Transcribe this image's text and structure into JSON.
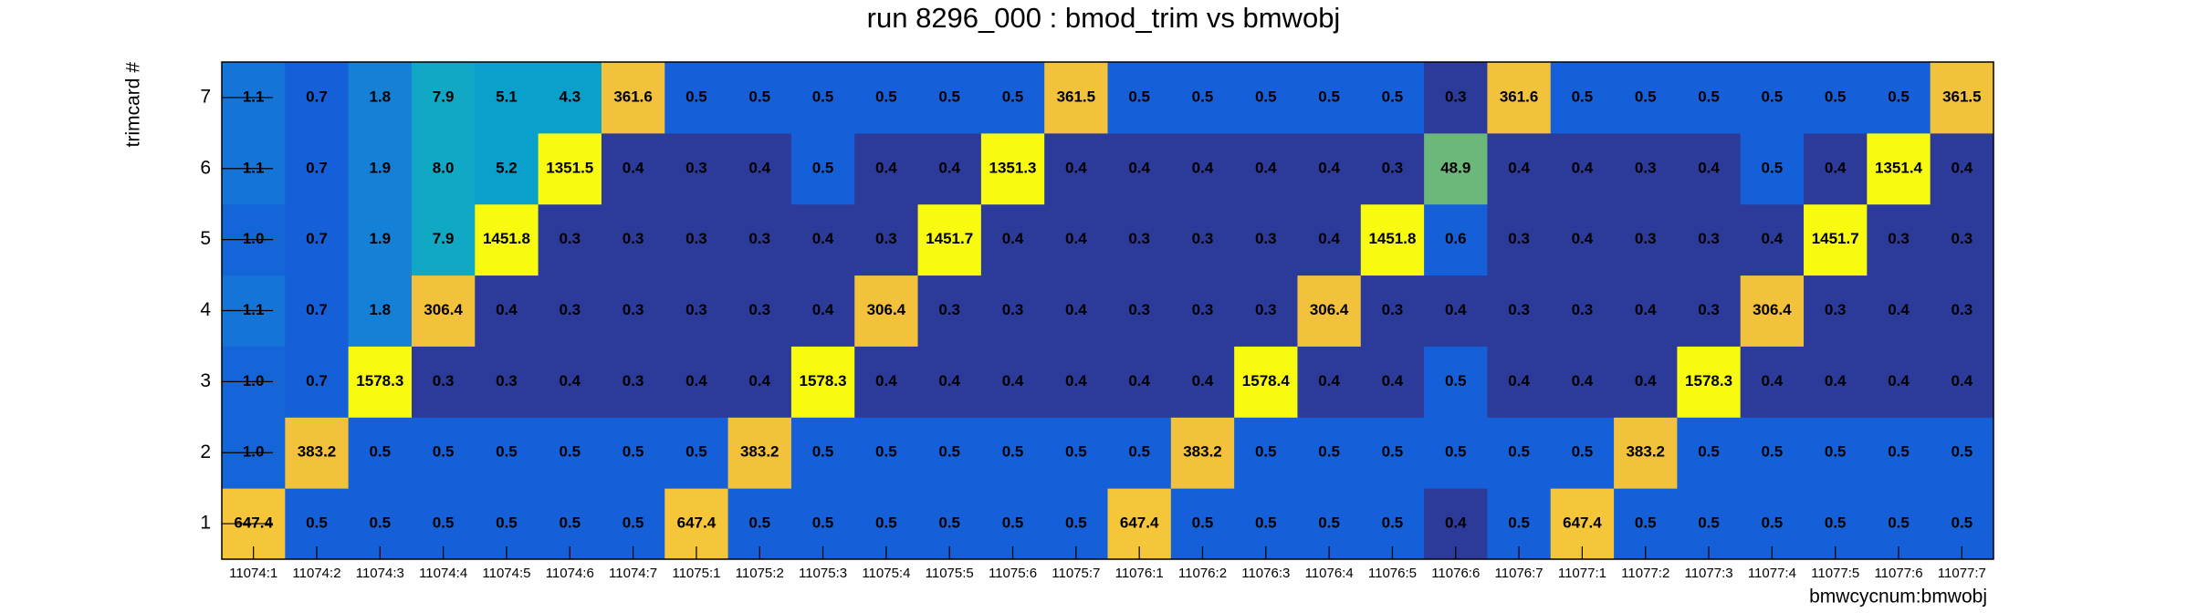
{
  "chart_data": {
    "type": "heatmap",
    "title": "run 8296_000 : bmod_trim vs bmwobj",
    "x_label": "bmwcycnum:bmwobj",
    "y_label": "trimcard #",
    "x_categories": [
      "11074:1",
      "11074:2",
      "11074:3",
      "11074:4",
      "11074:5",
      "11074:6",
      "11074:7",
      "11075:1",
      "11075:2",
      "11075:3",
      "11075:4",
      "11075:5",
      "11075:6",
      "11075:7",
      "11076:1",
      "11076:2",
      "11076:3",
      "11076:4",
      "11076:5",
      "11076:6",
      "11076:7",
      "11077:1",
      "11077:2",
      "11077:3",
      "11077:4",
      "11077:5",
      "11077:6",
      "11077:7"
    ],
    "y_categories": [
      1,
      2,
      3,
      4,
      5,
      6,
      7
    ],
    "values": [
      [
        647.4,
        0.5,
        0.5,
        0.5,
        0.5,
        0.5,
        0.5,
        647.4,
        0.5,
        0.5,
        0.5,
        0.5,
        0.5,
        0.5,
        647.4,
        0.5,
        0.5,
        0.5,
        0.5,
        0.4,
        0.5,
        647.4,
        0.5,
        0.5,
        0.5,
        0.5,
        0.5,
        0.5
      ],
      [
        1.0,
        383.2,
        0.5,
        0.5,
        0.5,
        0.5,
        0.5,
        0.5,
        383.2,
        0.5,
        0.5,
        0.5,
        0.5,
        0.5,
        0.5,
        383.2,
        0.5,
        0.5,
        0.5,
        0.5,
        0.5,
        0.5,
        383.2,
        0.5,
        0.5,
        0.5,
        0.5,
        0.5
      ],
      [
        1.0,
        0.7,
        1578.3,
        0.3,
        0.3,
        0.4,
        0.3,
        0.4,
        0.4,
        1578.3,
        0.4,
        0.4,
        0.4,
        0.4,
        0.4,
        0.4,
        1578.4,
        0.4,
        0.4,
        0.5,
        0.4,
        0.4,
        0.4,
        1578.3,
        0.4,
        0.4,
        0.4,
        0.4
      ],
      [
        1.1,
        0.7,
        1.8,
        306.4,
        0.4,
        0.3,
        0.3,
        0.3,
        0.3,
        0.4,
        306.4,
        0.3,
        0.3,
        0.4,
        0.3,
        0.3,
        0.3,
        306.4,
        0.3,
        0.4,
        0.3,
        0.3,
        0.4,
        0.3,
        306.4,
        0.3,
        0.4,
        0.3
      ],
      [
        1.0,
        0.7,
        1.9,
        7.9,
        1451.8,
        0.3,
        0.3,
        0.3,
        0.3,
        0.4,
        0.3,
        1451.7,
        0.4,
        0.4,
        0.3,
        0.3,
        0.3,
        0.4,
        1451.8,
        0.6,
        0.3,
        0.4,
        0.3,
        0.3,
        0.4,
        1451.7,
        0.3,
        0.3
      ],
      [
        1.1,
        0.7,
        1.9,
        8.0,
        5.2,
        1351.5,
        0.4,
        0.3,
        0.4,
        0.5,
        0.4,
        0.4,
        1351.3,
        0.4,
        0.4,
        0.4,
        0.4,
        0.4,
        0.3,
        48.9,
        0.4,
        0.4,
        0.3,
        0.4,
        0.5,
        0.4,
        1351.4,
        0.4
      ],
      [
        1.1,
        0.7,
        1.8,
        7.9,
        5.1,
        4.3,
        361.6,
        0.5,
        0.5,
        0.5,
        0.5,
        0.5,
        0.5,
        361.5,
        0.5,
        0.5,
        0.5,
        0.5,
        0.5,
        0.3,
        361.6,
        0.5,
        0.5,
        0.5,
        0.5,
        0.5,
        0.5,
        361.5
      ]
    ],
    "value_labels": [
      [
        "647.4",
        "0.5",
        "0.5",
        "0.5",
        "0.5",
        "0.5",
        "0.5",
        "647.4",
        "0.5",
        "0.5",
        "0.5",
        "0.5",
        "0.5",
        "0.5",
        "647.4",
        "0.5",
        "0.5",
        "0.5",
        "0.5",
        "0.4",
        "0.5",
        "647.4",
        "0.5",
        "0.5",
        "0.5",
        "0.5",
        "0.5",
        "0.5"
      ],
      [
        "1.0",
        "383.2",
        "0.5",
        "0.5",
        "0.5",
        "0.5",
        "0.5",
        "0.5",
        "383.2",
        "0.5",
        "0.5",
        "0.5",
        "0.5",
        "0.5",
        "0.5",
        "383.2",
        "0.5",
        "0.5",
        "0.5",
        "0.5",
        "0.5",
        "0.5",
        "383.2",
        "0.5",
        "0.5",
        "0.5",
        "0.5",
        "0.5"
      ],
      [
        "1.0",
        "0.7",
        "1578.3",
        "0.3",
        "0.3",
        "0.4",
        "0.3",
        "0.4",
        "0.4",
        "1578.3",
        "0.4",
        "0.4",
        "0.4",
        "0.4",
        "0.4",
        "0.4",
        "1578.4",
        "0.4",
        "0.4",
        "0.5",
        "0.4",
        "0.4",
        "0.4",
        "1578.3",
        "0.4",
        "0.4",
        "0.4",
        "0.4"
      ],
      [
        "1.1",
        "0.7",
        "1.8",
        "306.4",
        "0.4",
        "0.3",
        "0.3",
        "0.3",
        "0.3",
        "0.4",
        "306.4",
        "0.3",
        "0.3",
        "0.4",
        "0.3",
        "0.3",
        "0.3",
        "306.4",
        "0.3",
        "0.4",
        "0.3",
        "0.3",
        "0.4",
        "0.3",
        "306.4",
        "0.3",
        "0.4",
        "0.3"
      ],
      [
        "1.0",
        "0.7",
        "1.9",
        "7.9",
        "1451.8",
        "0.3",
        "0.3",
        "0.3",
        "0.3",
        "0.4",
        "0.3",
        "1451.7",
        "0.4",
        "0.4",
        "0.3",
        "0.3",
        "0.3",
        "0.4",
        "1451.8",
        "0.6",
        "0.3",
        "0.4",
        "0.3",
        "0.3",
        "0.4",
        "1451.7",
        "0.3",
        "0.3"
      ],
      [
        "1.1",
        "0.7",
        "1.9",
        "8.0",
        "5.2",
        "1351.5",
        "0.4",
        "0.3",
        "0.4",
        "0.5",
        "0.4",
        "0.4",
        "1351.3",
        "0.4",
        "0.4",
        "0.4",
        "0.4",
        "0.4",
        "0.3",
        "48.9",
        "0.4",
        "0.4",
        "0.3",
        "0.4",
        "0.5",
        "0.4",
        "1351.4",
        "0.4"
      ],
      [
        "1.1",
        "0.7",
        "1.8",
        "7.9",
        "5.1",
        "4.3",
        "361.6",
        "0.5",
        "0.5",
        "0.5",
        "0.5",
        "0.5",
        "0.5",
        "361.5",
        "0.5",
        "0.5",
        "0.5",
        "0.5",
        "0.5",
        "0.3",
        "361.6",
        "0.5",
        "0.5",
        "0.5",
        "0.5",
        "0.5",
        "0.5",
        "361.5"
      ]
    ],
    "color_scale": "log",
    "palette": [
      "#2c3a99",
      "#1560d8",
      "#1466d8",
      "#1474d8",
      "#1480d6",
      "#1090d2",
      "#0aa0cc",
      "#10a8c4",
      "#20b0b0",
      "#30b5a0",
      "#50b890",
      "#6cb87a",
      "#90bc70",
      "#b0bc60",
      "#d0bb58",
      "#e8be48",
      "#f2c23c",
      "#f6c63a",
      "#fbe020",
      "#f8fa10"
    ]
  }
}
